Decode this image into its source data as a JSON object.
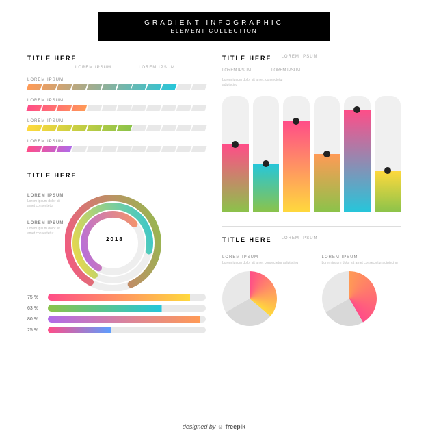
{
  "header": {
    "title": "GRADIENT INFOGRAPHIC",
    "subtitle": "ELEMENT COLLECTION"
  },
  "palette": {
    "pink": "#ff4d88",
    "orange": "#ff9a56",
    "yellow": "#ffd93d",
    "green": "#8bc34a",
    "teal": "#26c6da",
    "blue": "#5c9eff",
    "violet": "#b06ae8",
    "grey": "#e8e8e8",
    "dgrey": "#d0d0d0"
  },
  "segbars": {
    "title": "TITLE HERE",
    "lorems": [
      "LOREM IPSUM",
      "LOREM IPSUM"
    ],
    "items": [
      {
        "label": "LOREM IPSUM",
        "segs": 12,
        "fill": 10,
        "from": "#ff9a56",
        "to": "#26c6da"
      },
      {
        "label": "LOREM IPSUM",
        "segs": 12,
        "fill": 4,
        "from": "#ff4d88",
        "to": "#ff9a56"
      },
      {
        "label": "LOREM IPSUM",
        "segs": 12,
        "fill": 7,
        "from": "#ffd93d",
        "to": "#8bc34a"
      },
      {
        "label": "LOREM IPSUM",
        "segs": 12,
        "fill": 3,
        "from": "#ff4d88",
        "to": "#b06ae8"
      }
    ]
  },
  "radial": {
    "title": "TITLE HERE",
    "year": "2018",
    "boxes": [
      {
        "t": "LOREM IPSUM",
        "d": "Lorem ipsum dolor sit amet consectetur"
      },
      {
        "t": "LOREM IPSUM",
        "d": "Lorem ipsum dolor sit amet consectetur"
      }
    ],
    "arcs": [
      {
        "r": 66,
        "w": 10,
        "pct": 85,
        "from": "#8bc34a",
        "to": "#ff4d88"
      },
      {
        "r": 54,
        "w": 10,
        "pct": 70,
        "from": "#26c6da",
        "to": "#ffd93d"
      },
      {
        "r": 42,
        "w": 10,
        "pct": 55,
        "from": "#ff9a56",
        "to": "#b06ae8"
      }
    ],
    "hbars": [
      {
        "pct": "75 %",
        "w": 90,
        "from": "#ff4d88",
        "to": "#ffd93d"
      },
      {
        "pct": "63 %",
        "w": 72,
        "from": "#8bc34a",
        "to": "#26c6da"
      },
      {
        "pct": "80 %",
        "w": 96,
        "from": "#b06ae8",
        "to": "#ff9a56"
      },
      {
        "pct": "25 %",
        "w": 40,
        "from": "#ff4d88",
        "to": "#5c9eff"
      }
    ]
  },
  "cols": {
    "title": "TITLE HERE",
    "sub": "LOREM IPSUM",
    "lorems": [
      "LOREM IPSUM",
      "LOREM IPSUM"
    ],
    "desc": "Lorem ipsum dolor sit amet, consectetur adipiscing",
    "bars": [
      {
        "h": 58,
        "from": "#8bc34a",
        "to": "#ff4d88"
      },
      {
        "h": 42,
        "from": "#8bc34a",
        "to": "#26c6da"
      },
      {
        "h": 78,
        "from": "#ffd93d",
        "to": "#ff4d88"
      },
      {
        "h": 50,
        "from": "#8bc34a",
        "to": "#ff9a56"
      },
      {
        "h": 88,
        "from": "#26c6da",
        "to": "#ff4d88"
      },
      {
        "h": 36,
        "from": "#8bc34a",
        "to": "#ffd93d"
      }
    ]
  },
  "pies": {
    "title": "TITLE HERE",
    "sub": "LOREM IPSUM",
    "items": [
      {
        "label": "LOREM IPSUM",
        "desc": "Lorem ipsum dolor sit amet consectetur adipiscing",
        "slices": [
          {
            "deg": 130,
            "from": "#ff4d88",
            "to": "#ffd93d"
          },
          {
            "deg": 110,
            "from": "#d8d8d8",
            "to": "#d8d8d8"
          },
          {
            "deg": 120,
            "from": "#e8e8e8",
            "to": "#e8e8e8"
          }
        ]
      },
      {
        "label": "LOREM IPSUM",
        "desc": "Lorem ipsum dolor sit amet consectetur adipiscing",
        "slices": [
          {
            "deg": 150,
            "from": "#ff9a56",
            "to": "#ff4d88"
          },
          {
            "deg": 90,
            "from": "#d8d8d8",
            "to": "#d8d8d8"
          },
          {
            "deg": 120,
            "from": "#e8e8e8",
            "to": "#e8e8e8"
          }
        ]
      }
    ]
  },
  "footer": {
    "pre": "designed by ",
    "brand": "freepik"
  }
}
